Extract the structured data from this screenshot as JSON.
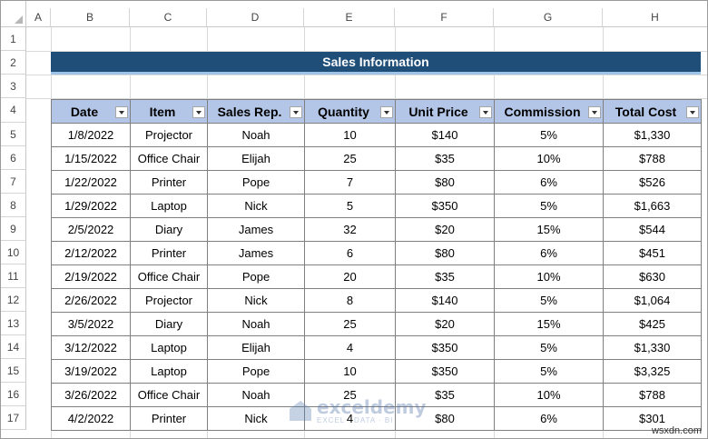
{
  "sheet": {
    "columns": [
      "A",
      "B",
      "C",
      "D",
      "E",
      "F",
      "G",
      "H"
    ],
    "rows": [
      "1",
      "2",
      "3",
      "4",
      "5",
      "6",
      "7",
      "8",
      "9",
      "10",
      "11",
      "12",
      "13",
      "14",
      "15",
      "16",
      "17"
    ]
  },
  "title": "Sales Information",
  "table": {
    "headers": [
      "Date",
      "Item",
      "Sales Rep.",
      "Quantity",
      "Unit Price",
      "Commission",
      "Total Cost"
    ],
    "rows": [
      [
        "1/8/2022",
        "Projector",
        "Noah",
        "10",
        "$140",
        "5%",
        "$1,330"
      ],
      [
        "1/15/2022",
        "Office Chair",
        "Elijah",
        "25",
        "$35",
        "10%",
        "$788"
      ],
      [
        "1/22/2022",
        "Printer",
        "Pope",
        "7",
        "$80",
        "6%",
        "$526"
      ],
      [
        "1/29/2022",
        "Laptop",
        "Nick",
        "5",
        "$350",
        "5%",
        "$1,663"
      ],
      [
        "2/5/2022",
        "Diary",
        "James",
        "32",
        "$20",
        "15%",
        "$544"
      ],
      [
        "2/12/2022",
        "Printer",
        "James",
        "6",
        "$80",
        "6%",
        "$451"
      ],
      [
        "2/19/2022",
        "Office Chair",
        "Pope",
        "20",
        "$35",
        "10%",
        "$630"
      ],
      [
        "2/26/2022",
        "Projector",
        "Nick",
        "8",
        "$140",
        "5%",
        "$1,064"
      ],
      [
        "3/5/2022",
        "Diary",
        "Noah",
        "25",
        "$20",
        "15%",
        "$425"
      ],
      [
        "3/12/2022",
        "Laptop",
        "Elijah",
        "4",
        "$350",
        "5%",
        "$1,330"
      ],
      [
        "3/19/2022",
        "Laptop",
        "Pope",
        "10",
        "$350",
        "5%",
        "$3,325"
      ],
      [
        "3/26/2022",
        "Office Chair",
        "Noah",
        "25",
        "$35",
        "10%",
        "$788"
      ],
      [
        "4/2/2022",
        "Printer",
        "Nick",
        "4",
        "$80",
        "6%",
        "$301"
      ]
    ]
  },
  "watermark": {
    "main": "exceldemy",
    "sub": "EXCEL · DATA · BI"
  },
  "site_mark": "wsxdn.com",
  "colors": {
    "banner": "#1f4e79",
    "header_fill": "#b4c6e7"
  }
}
